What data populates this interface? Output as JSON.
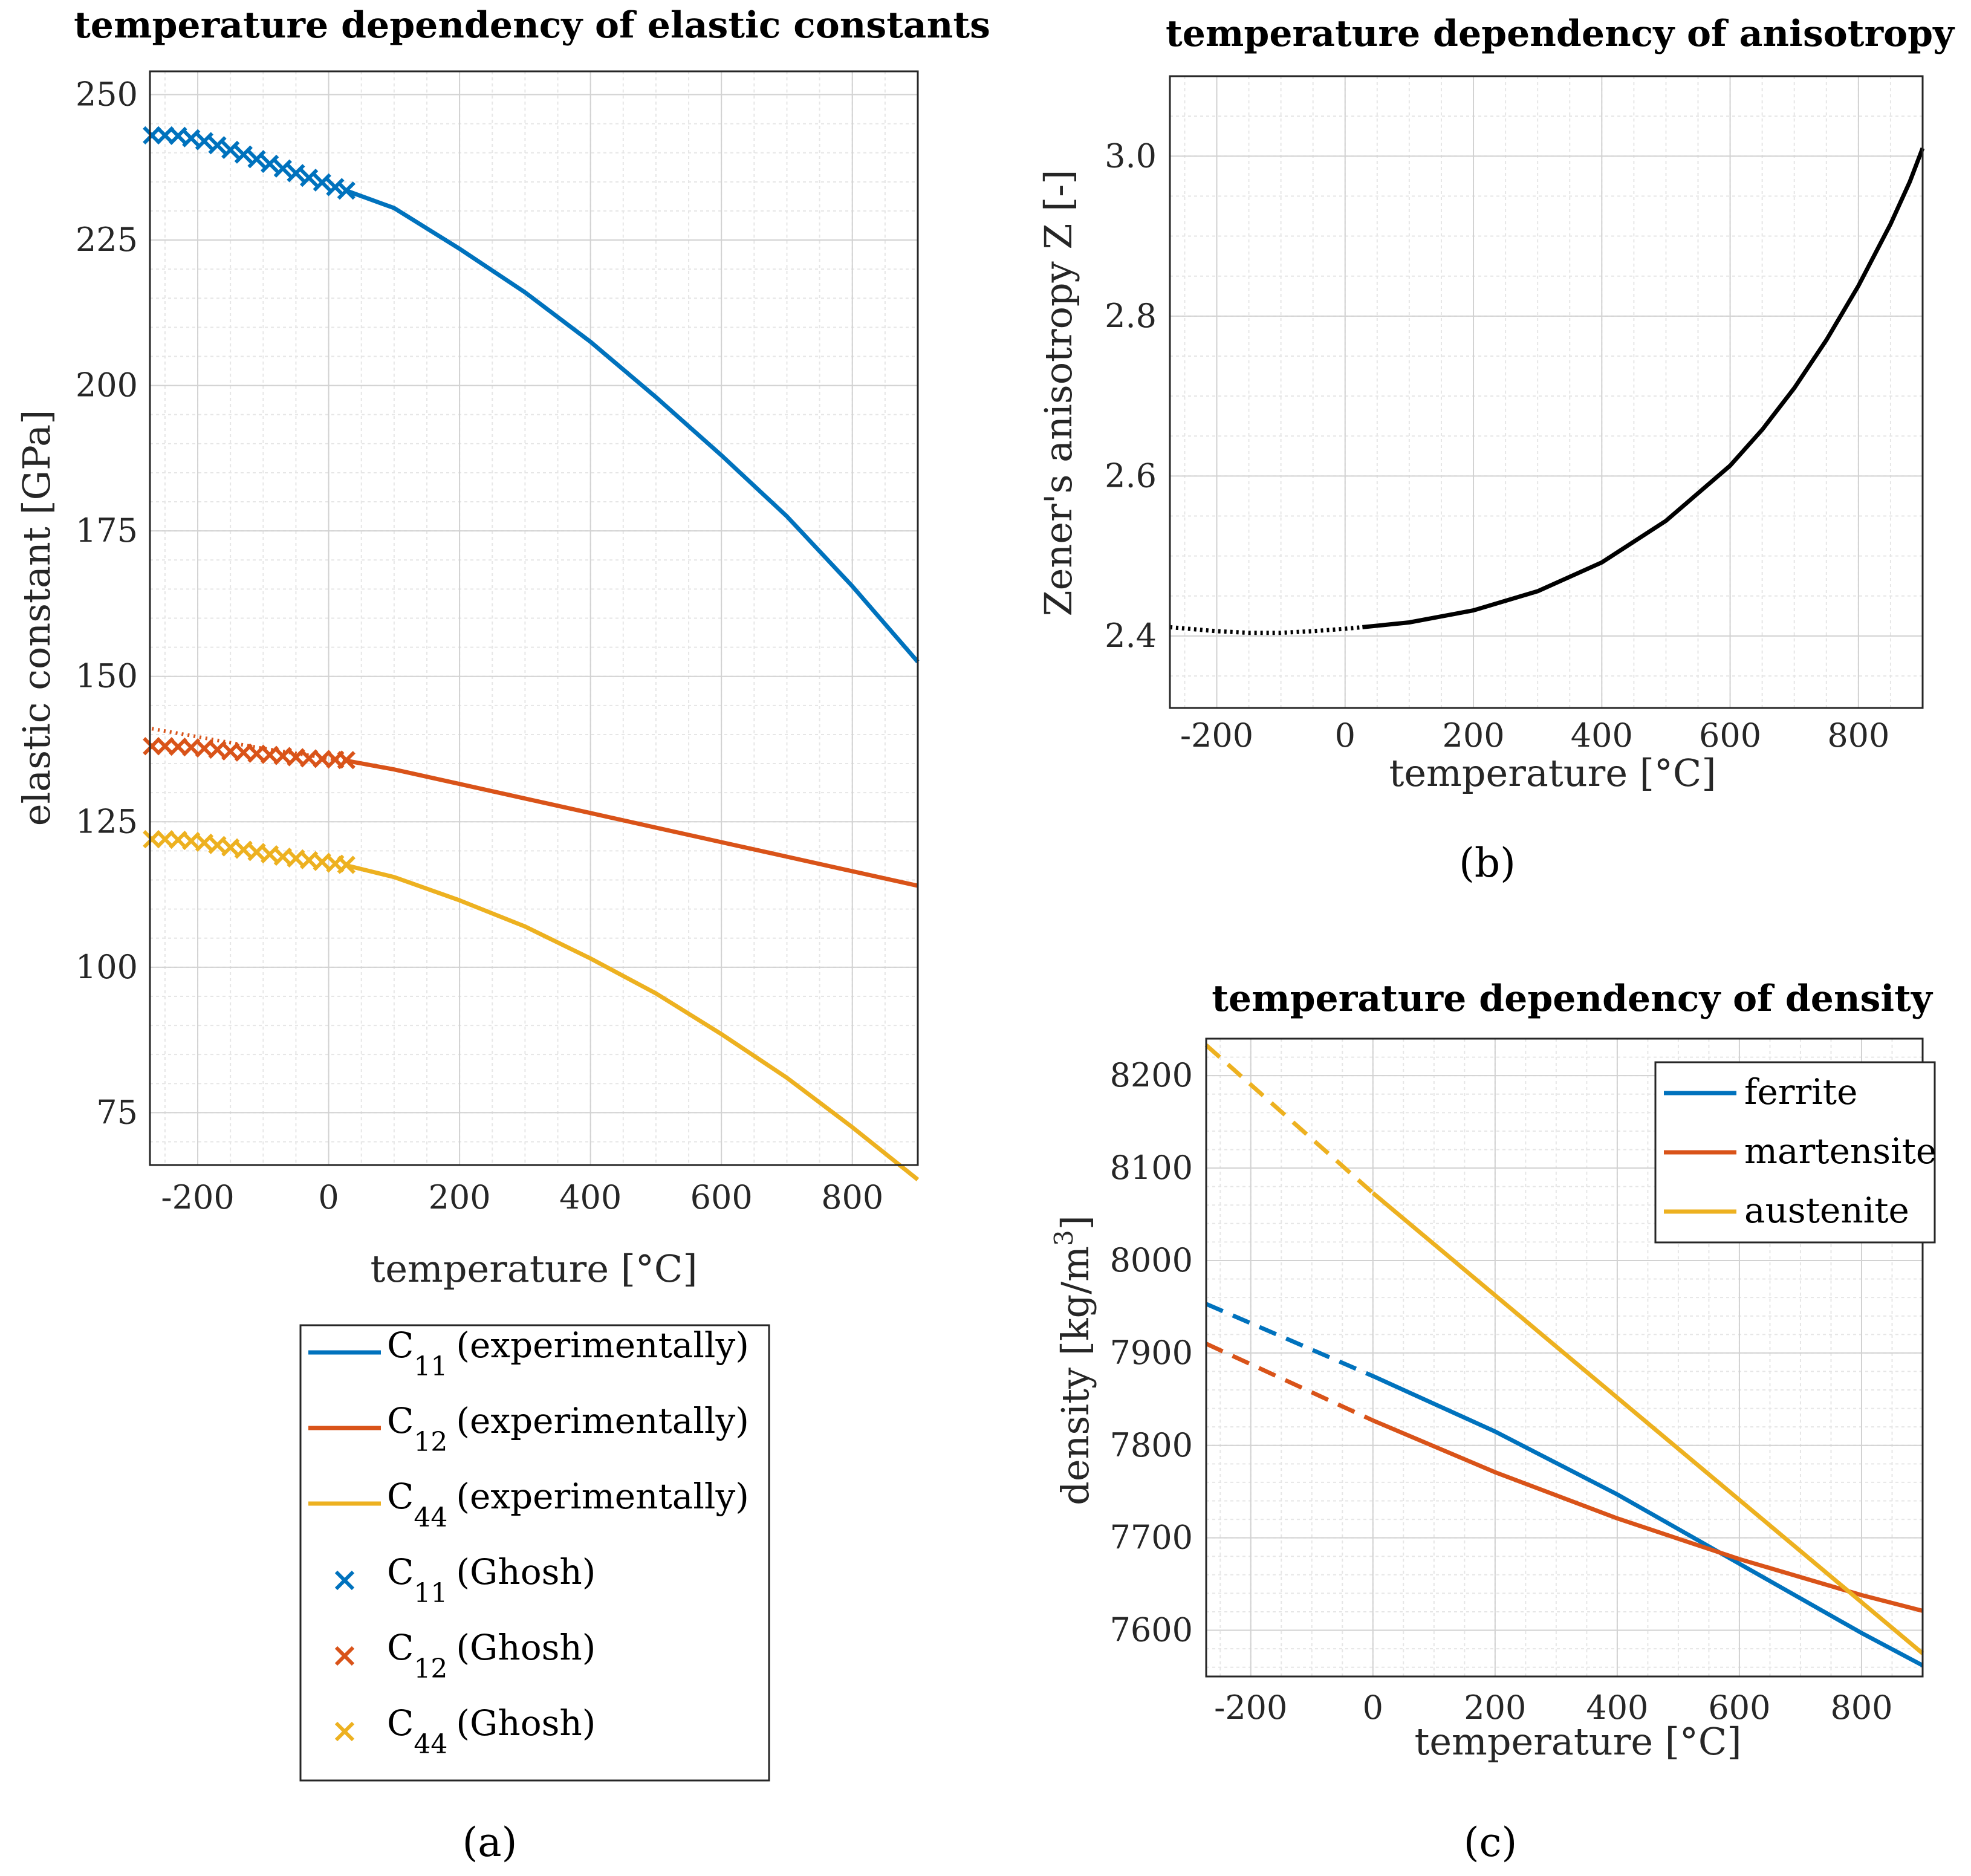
{
  "panels": {
    "a": "(a)",
    "b": "(b)",
    "c": "(c)"
  },
  "chart_data": [
    {
      "id": "elastic",
      "type": "line",
      "title": "temperature dependency of elastic constants",
      "xlabel": "temperature [°C]",
      "ylabel": "elastic constant [GPa]",
      "xlim": [
        -273,
        900
      ],
      "ylim": [
        66,
        254
      ],
      "xticks": [
        -200,
        0,
        200,
        400,
        600,
        800
      ],
      "yticks": [
        75,
        100,
        125,
        150,
        175,
        200,
        225,
        250
      ],
      "series": [
        {
          "name": "C11 (experimentally)",
          "label": "C",
          "sub": "11",
          "suffix": "(experimentally)",
          "color": "#0072BD",
          "kind": "line",
          "x": [
            27,
            100,
            200,
            300,
            400,
            500,
            600,
            700,
            800,
            900
          ],
          "y": [
            233.5,
            230.5,
            223.5,
            216,
            207.5,
            198,
            188,
            177.5,
            165.5,
            152.5
          ]
        },
        {
          "name": "C12 (experimentally)",
          "label": "C",
          "sub": "12",
          "suffix": "(experimentally)",
          "color": "#D95319",
          "kind": "line",
          "x": [
            27,
            100,
            200,
            300,
            400,
            500,
            600,
            700,
            800,
            900
          ],
          "y": [
            135.5,
            134,
            131.5,
            129,
            126.5,
            124,
            121.5,
            119,
            116.5,
            114
          ]
        },
        {
          "name": "C44 (experimentally)",
          "label": "C",
          "sub": "44",
          "suffix": "(experimentally)",
          "color": "#EDB120",
          "kind": "line",
          "x": [
            27,
            100,
            200,
            300,
            400,
            500,
            600,
            700,
            800,
            900
          ],
          "y": [
            117.5,
            115.5,
            111.5,
            107,
            101.5,
            95.5,
            88.5,
            81,
            72.5,
            63.5
          ]
        },
        {
          "name": "C11 (Ghosh)",
          "label": "C",
          "sub": "11",
          "suffix": "(Ghosh)",
          "color": "#0072BD",
          "kind": "marker",
          "x": [
            -270,
            -250,
            -230,
            -210,
            -190,
            -170,
            -150,
            -130,
            -110,
            -90,
            -70,
            -50,
            -30,
            -10,
            10,
            27
          ],
          "y": [
            243,
            243,
            242.9,
            242.5,
            242,
            241.3,
            240.5,
            239.7,
            238.9,
            238.1,
            237.3,
            236.5,
            235.7,
            234.9,
            234.1,
            233.5
          ]
        },
        {
          "name": "C12 (Ghosh)",
          "label": "C",
          "sub": "12",
          "suffix": "(Ghosh)",
          "color": "#D95319",
          "kind": "marker",
          "x": [
            -270,
            -250,
            -230,
            -210,
            -190,
            -170,
            -150,
            -130,
            -110,
            -90,
            -70,
            -50,
            -30,
            -10,
            10,
            27
          ],
          "y": [
            138,
            138,
            137.9,
            137.8,
            137.6,
            137.4,
            137.1,
            136.9,
            136.7,
            136.5,
            136.3,
            136.1,
            135.9,
            135.8,
            135.7,
            135.6
          ]
        },
        {
          "name": "C44 (Ghosh)",
          "label": "C",
          "sub": "44",
          "suffix": "(Ghosh)",
          "color": "#EDB120",
          "kind": "marker",
          "x": [
            -270,
            -250,
            -230,
            -210,
            -190,
            -170,
            -150,
            -130,
            -110,
            -90,
            -70,
            -50,
            -30,
            -10,
            10,
            27
          ],
          "y": [
            122,
            122,
            121.9,
            121.7,
            121.4,
            121,
            120.6,
            120.2,
            119.8,
            119.4,
            119,
            118.7,
            118.4,
            118.1,
            117.8,
            117.6
          ]
        }
      ],
      "extrapolated_dotted": [
        {
          "color": "#D95319",
          "x": [
            -270,
            -200,
            -100,
            0,
            27
          ],
          "y": [
            141,
            139.6,
            137.6,
            135.9,
            135.5
          ]
        }
      ],
      "legend_position": "below"
    },
    {
      "id": "anisotropy",
      "type": "line",
      "title": "temperature dependency of anisotropy",
      "xlabel": "temperature [°C]",
      "ylabel": "Zener's anisotropy Z [-]",
      "xlim": [
        -273,
        900
      ],
      "ylim": [
        2.31,
        3.1
      ],
      "xticks": [
        -200,
        0,
        200,
        400,
        600,
        800
      ],
      "yticks": [
        2.4,
        2.6,
        2.8,
        3.0
      ],
      "yticklabels": [
        "2.4",
        "2.6",
        "2.8",
        "3.0"
      ],
      "series": [
        {
          "name": "Z",
          "color": "#000000",
          "kind": "line",
          "x": [
            27,
            100,
            200,
            300,
            400,
            500,
            600,
            650,
            700,
            750,
            800,
            850,
            880,
            900
          ],
          "y": [
            2.411,
            2.417,
            2.432,
            2.456,
            2.492,
            2.544,
            2.613,
            2.658,
            2.71,
            2.77,
            2.838,
            2.915,
            2.968,
            3.01
          ]
        },
        {
          "name": "Z (extrapolated)",
          "color": "#000000",
          "kind": "dotted",
          "x": [
            -273,
            -200,
            -150,
            -100,
            -50,
            0,
            27
          ],
          "y": [
            2.411,
            2.406,
            2.404,
            2.404,
            2.406,
            2.409,
            2.411
          ]
        }
      ]
    },
    {
      "id": "density",
      "type": "line",
      "title": "temperature dependency of density",
      "xlabel": "temperature [°C]",
      "ylabel": "density [kg/m",
      "ylabel_sup": "3",
      "ylabel_end": "]",
      "xlim": [
        -273,
        900
      ],
      "ylim": [
        7550,
        8240
      ],
      "xticks": [
        -200,
        0,
        200,
        400,
        600,
        800
      ],
      "yticks": [
        7600,
        7700,
        7800,
        7900,
        8000,
        8100,
        8200
      ],
      "series": [
        {
          "name": "ferrite",
          "color": "#0072BD",
          "kind": "line",
          "x": [
            0,
            200,
            400,
            600,
            800,
            900
          ],
          "y": [
            7875,
            7815,
            7747,
            7672,
            7597,
            7562
          ]
        },
        {
          "name": "martensite",
          "color": "#D95319",
          "kind": "line",
          "x": [
            0,
            200,
            400,
            600,
            800,
            900
          ],
          "y": [
            7827,
            7771,
            7721,
            7677,
            7638,
            7621
          ]
        },
        {
          "name": "austenite",
          "color": "#EDB120",
          "kind": "line",
          "x": [
            0,
            900
          ],
          "y": [
            8073,
            7575
          ]
        }
      ],
      "dashed_extrapolations": [
        {
          "color": "#0072BD",
          "x": [
            -273,
            0
          ],
          "y": [
            7953,
            7875
          ]
        },
        {
          "color": "#D95319",
          "x": [
            -273,
            0
          ],
          "y": [
            7910,
            7827
          ]
        },
        {
          "color": "#EDB120",
          "x": [
            -273,
            0
          ],
          "y": [
            8233,
            8073
          ]
        }
      ],
      "legend": [
        "ferrite",
        "martensite",
        "austenite"
      ],
      "legend_position": "top-right"
    }
  ]
}
